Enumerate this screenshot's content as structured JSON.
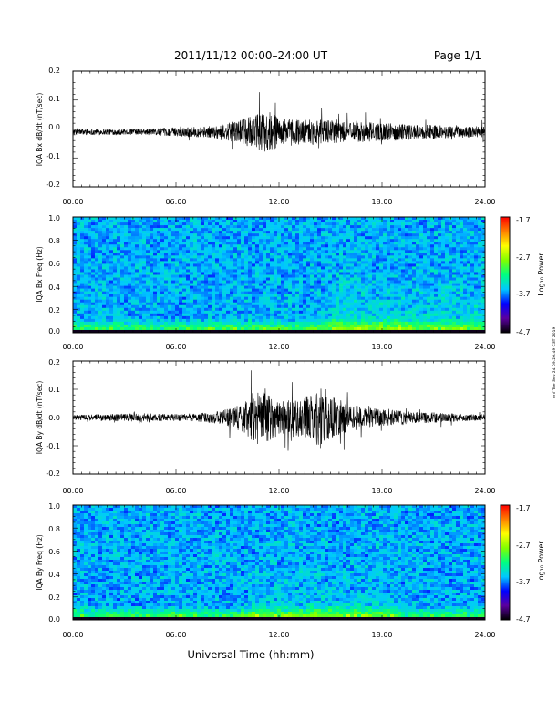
{
  "header": {
    "title": "2011/11/12  00:00–24:00 UT",
    "page": "Page 1/1"
  },
  "footer": {
    "xlabel": "Universal Time (hh:mm)",
    "side_note": "rmf Tue Sep 24 09:26:49 CST 2019"
  },
  "colorbar": {
    "ticks": [
      "-1.7",
      "-2.7",
      "-3.7",
      "-4.7"
    ],
    "label": "Log₁₀ Power",
    "range": [
      -4.7,
      -1.7
    ],
    "colors": [
      "#000000",
      "#5a00a0",
      "#0000ff",
      "#00c8ff",
      "#00ff80",
      "#80ff00",
      "#ffff00",
      "#ff8000",
      "#ff0000"
    ]
  },
  "chart_data": [
    {
      "type": "line",
      "ylabel": "IQA Bx dB/dt (nT/sec)",
      "xlim": [
        0,
        24
      ],
      "ylim": [
        -0.2,
        0.2
      ],
      "xticks": [
        "00:00",
        "06:00",
        "12:00",
        "18:00",
        "24:00"
      ],
      "yticks": [
        "0.2",
        "0.1",
        "0.0",
        "-0.1",
        "-0.2"
      ],
      "series": [
        {
          "x": [
            0,
            2,
            4,
            6,
            8,
            9,
            10,
            11,
            11.5,
            12,
            13,
            14,
            15,
            16,
            17,
            18,
            19,
            20,
            21,
            22,
            23,
            24
          ],
          "amplitude": [
            0.01,
            0.01,
            0.01,
            0.015,
            0.02,
            0.03,
            0.045,
            0.07,
            0.07,
            0.05,
            0.045,
            0.045,
            0.04,
            0.035,
            0.035,
            0.03,
            0.03,
            0.025,
            0.025,
            0.02,
            0.02,
            0.02
          ],
          "offset": -0.01
        }
      ]
    },
    {
      "type": "heatmap",
      "ylabel": "IQA Bx Freq (Hz)",
      "xlim": [
        0,
        24
      ],
      "ylim": [
        0,
        1.0
      ],
      "xticks": [
        "00:00",
        "06:00",
        "12:00",
        "18:00",
        "24:00"
      ],
      "yticks": [
        "1.0",
        "0.8",
        "0.6",
        "0.4",
        "0.2",
        "0.0"
      ],
      "zlim": [
        -4.7,
        -1.7
      ]
    },
    {
      "type": "line",
      "ylabel": "IQA By dB/dt (nT/sec)",
      "xlim": [
        0,
        24
      ],
      "ylim": [
        -0.2,
        0.2
      ],
      "xticks": [
        "00:00",
        "06:00",
        "12:00",
        "18:00",
        "24:00"
      ],
      "yticks": [
        "0.2",
        "0.1",
        "0.0",
        "-0.1",
        "-0.2"
      ],
      "series": [
        {
          "x": [
            0,
            2,
            4,
            6,
            8,
            9,
            10,
            10.5,
            11,
            11.5,
            12,
            13,
            14,
            14.5,
            15,
            16,
            17,
            18,
            19,
            20,
            21,
            22,
            23,
            24
          ],
          "amplitude": [
            0.01,
            0.012,
            0.015,
            0.012,
            0.018,
            0.03,
            0.06,
            0.09,
            0.1,
            0.08,
            0.06,
            0.07,
            0.08,
            0.12,
            0.08,
            0.05,
            0.035,
            0.03,
            0.025,
            0.02,
            0.02,
            0.015,
            0.012,
            0.01
          ],
          "offset": 0.0
        }
      ]
    },
    {
      "type": "heatmap",
      "ylabel": "IQA By Freq (Hz)",
      "xlim": [
        0,
        24
      ],
      "ylim": [
        0,
        1.0
      ],
      "xticks": [
        "00:00",
        "06:00",
        "12:00",
        "18:00",
        "24:00"
      ],
      "yticks": [
        "1.0",
        "0.8",
        "0.6",
        "0.4",
        "0.2",
        "0.0"
      ],
      "zlim": [
        -4.7,
        -1.7
      ]
    }
  ]
}
